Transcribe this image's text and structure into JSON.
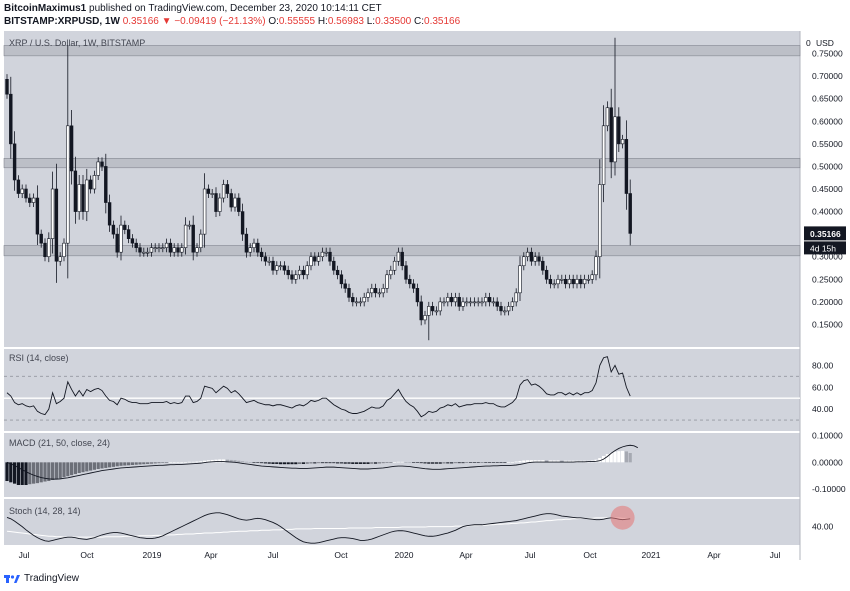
{
  "header": {
    "author": "BitcoinMaximus1",
    "published_text": "published on TradingView.com, December 23, 2020 10:14:11 CET",
    "symbol": "BITSTAMP:XRPUSD, 1W",
    "last_price": "0.35166",
    "change_arrow": "▼",
    "change": "−0.09419 (−21.13%)",
    "o_label": "O:",
    "o_value": "0.55555",
    "h_label": "H:",
    "h_value": "0.56983",
    "l_label": "L:",
    "l_value": "0.33500",
    "c_label": "C:",
    "c_value": "0.35166"
  },
  "footer": {
    "brand": "TradingView"
  },
  "colors": {
    "pane_bg": "#d1d4dc",
    "candle_up": "#ffffff",
    "candle_down": "#131722",
    "line": "#131722",
    "zone_fill": "#b9bcc4",
    "highlight_circle": "#e57373",
    "price_tag_bg": "#131722",
    "price_tag_text": "#ffffff"
  },
  "chart_data": {
    "type": "candlestick",
    "title": "XRP / U.S. Dollar, 1W, BITSTAMP",
    "currency": "USD",
    "y_ticks": [
      "0.15000",
      "0.20000",
      "0.25000",
      "0.30000",
      "0.35000",
      "0.40000",
      "0.45000",
      "0.50000",
      "0.55000",
      "0.60000",
      "0.65000",
      "0.70000",
      "0.75000"
    ],
    "y_top_tick": "0",
    "ylim": [
      0.1,
      0.8
    ],
    "x_ticks": [
      "Jul",
      "Oct",
      "2019",
      "Apr",
      "Jul",
      "Oct",
      "2020",
      "Apr",
      "Jul",
      "Oct",
      "2021",
      "Apr",
      "Jul"
    ],
    "current_price_label": "0.35166",
    "countdown_label": "4d 15h",
    "zones": [
      [
        0.745,
        0.768
      ],
      [
        0.497,
        0.518
      ],
      [
        0.302,
        0.325
      ]
    ],
    "closes": [
      0.66,
      0.55,
      0.47,
      0.44,
      0.45,
      0.43,
      0.42,
      0.43,
      0.35,
      0.33,
      0.3,
      0.34,
      0.45,
      0.29,
      0.3,
      0.33,
      0.59,
      0.49,
      0.4,
      0.46,
      0.4,
      0.47,
      0.45,
      0.48,
      0.51,
      0.5,
      0.42,
      0.37,
      0.35,
      0.31,
      0.37,
      0.36,
      0.34,
      0.33,
      0.32,
      0.31,
      0.31,
      0.31,
      0.32,
      0.32,
      0.32,
      0.32,
      0.33,
      0.31,
      0.32,
      0.31,
      0.32,
      0.37,
      0.37,
      0.31,
      0.32,
      0.35,
      0.45,
      0.44,
      0.44,
      0.4,
      0.43,
      0.46,
      0.44,
      0.41,
      0.43,
      0.4,
      0.35,
      0.31,
      0.32,
      0.33,
      0.31,
      0.3,
      0.29,
      0.29,
      0.27,
      0.28,
      0.28,
      0.27,
      0.26,
      0.25,
      0.26,
      0.27,
      0.26,
      0.28,
      0.3,
      0.29,
      0.3,
      0.31,
      0.31,
      0.29,
      0.27,
      0.26,
      0.24,
      0.23,
      0.21,
      0.2,
      0.2,
      0.2,
      0.21,
      0.22,
      0.23,
      0.22,
      0.22,
      0.23,
      0.26,
      0.27,
      0.29,
      0.31,
      0.28,
      0.25,
      0.24,
      0.23,
      0.2,
      0.16,
      0.17,
      0.19,
      0.18,
      0.18,
      0.2,
      0.2,
      0.21,
      0.2,
      0.21,
      0.19,
      0.2,
      0.2,
      0.2,
      0.2,
      0.2,
      0.2,
      0.21,
      0.2,
      0.2,
      0.19,
      0.18,
      0.18,
      0.19,
      0.2,
      0.22,
      0.28,
      0.3,
      0.31,
      0.29,
      0.3,
      0.29,
      0.27,
      0.25,
      0.24,
      0.24,
      0.25,
      0.25,
      0.24,
      0.25,
      0.24,
      0.25,
      0.24,
      0.25,
      0.25,
      0.26,
      0.3,
      0.46,
      0.59,
      0.63,
      0.51,
      0.61,
      0.55,
      0.56,
      0.44,
      0.35166
    ],
    "rsi": {
      "label": "RSI (14, close)",
      "ticks": [
        "40.00",
        "60.00",
        "80.00"
      ],
      "ylim": [
        20,
        95
      ],
      "levels": [
        30,
        70
      ],
      "values": [
        55,
        52,
        46,
        44,
        45,
        43,
        42,
        43,
        38,
        36,
        35,
        40,
        55,
        45,
        47,
        50,
        65,
        58,
        52,
        57,
        52,
        58,
        56,
        58,
        59,
        57,
        52,
        48,
        47,
        44,
        50,
        49,
        47,
        46,
        46,
        45,
        45,
        45,
        46,
        46,
        46,
        46,
        47,
        45,
        46,
        45,
        46,
        52,
        52,
        46,
        47,
        50,
        61,
        60,
        59,
        55,
        58,
        61,
        59,
        55,
        57,
        54,
        50,
        46,
        47,
        48,
        46,
        45,
        44,
        44,
        43,
        44,
        44,
        43,
        42,
        41,
        43,
        44,
        43,
        45,
        48,
        47,
        48,
        50,
        50,
        47,
        44,
        42,
        40,
        39,
        37,
        36,
        36,
        37,
        38,
        40,
        42,
        41,
        41,
        43,
        48,
        50,
        54,
        58,
        52,
        47,
        44,
        42,
        38,
        33,
        35,
        38,
        37,
        38,
        41,
        42,
        44,
        43,
        45,
        42,
        43,
        44,
        44,
        45,
        45,
        45,
        46,
        45,
        45,
        43,
        42,
        42,
        44,
        46,
        50,
        62,
        66,
        67,
        62,
        63,
        61,
        58,
        54,
        53,
        53,
        55,
        55,
        53,
        55,
        53,
        55,
        53,
        55,
        55,
        57,
        64,
        80,
        87,
        88,
        74,
        80,
        72,
        73,
        60,
        52
      ]
    },
    "macd": {
      "label": "MACD (21, 50, close, 24)",
      "ticks": [
        "0.10000",
        "0.00000",
        "-0.10000"
      ],
      "ylim": [
        -0.13,
        0.11
      ],
      "hist": [
        -0.07,
        -0.075,
        -0.08,
        -0.085,
        -0.085,
        -0.085,
        -0.082,
        -0.08,
        -0.078,
        -0.075,
        -0.072,
        -0.07,
        -0.066,
        -0.064,
        -0.06,
        -0.056,
        -0.052,
        -0.048,
        -0.044,
        -0.04,
        -0.037,
        -0.034,
        -0.031,
        -0.028,
        -0.025,
        -0.023,
        -0.021,
        -0.019,
        -0.017,
        -0.015,
        -0.013,
        -0.012,
        -0.011,
        -0.01,
        -0.009,
        -0.008,
        -0.007,
        -0.006,
        -0.005,
        -0.004,
        -0.003,
        -0.002,
        -0.001,
        0.0,
        0.001,
        0.001,
        0.001,
        0.001,
        0.002,
        0.002,
        0.003,
        0.004,
        0.006,
        0.008,
        0.009,
        0.01,
        0.011,
        0.011,
        0.01,
        0.009,
        0.008,
        0.006,
        0.004,
        0.002,
        0.0,
        -0.001,
        -0.002,
        -0.003,
        -0.004,
        -0.005,
        -0.006,
        -0.006,
        -0.007,
        -0.007,
        -0.007,
        -0.007,
        -0.007,
        -0.006,
        -0.006,
        -0.005,
        -0.004,
        -0.004,
        -0.003,
        -0.003,
        -0.003,
        -0.003,
        -0.003,
        -0.004,
        -0.004,
        -0.005,
        -0.005,
        -0.006,
        -0.006,
        -0.006,
        -0.006,
        -0.006,
        -0.005,
        -0.005,
        -0.004,
        -0.003,
        -0.002,
        -0.001,
        0.001,
        0.002,
        0.002,
        0.001,
        0.0,
        -0.001,
        -0.002,
        -0.003,
        -0.004,
        -0.005,
        -0.005,
        -0.005,
        -0.005,
        -0.004,
        -0.004,
        -0.004,
        -0.003,
        -0.003,
        -0.003,
        -0.002,
        -0.002,
        -0.002,
        -0.002,
        -0.001,
        -0.001,
        -0.001,
        -0.001,
        -0.001,
        -0.001,
        -0.001,
        0.0,
        0.001,
        0.003,
        0.005,
        0.007,
        0.008,
        0.008,
        0.008,
        0.008,
        0.008,
        0.007,
        0.007,
        0.007,
        0.007,
        0.006,
        0.006,
        0.006,
        0.006,
        0.006,
        0.006,
        0.006,
        0.006,
        0.007,
        0.01,
        0.016,
        0.024,
        0.031,
        0.036,
        0.04,
        0.042,
        0.043,
        0.041,
        0.035
      ],
      "line": [
        0.0,
        -0.005,
        -0.012,
        -0.02,
        -0.028,
        -0.035,
        -0.042,
        -0.048,
        -0.053,
        -0.057,
        -0.06,
        -0.062,
        -0.063,
        -0.063,
        -0.062,
        -0.06,
        -0.058,
        -0.055,
        -0.052,
        -0.049,
        -0.046,
        -0.043,
        -0.04,
        -0.037,
        -0.034,
        -0.031,
        -0.029,
        -0.027,
        -0.025,
        -0.023,
        -0.021,
        -0.02,
        -0.019,
        -0.018,
        -0.017,
        -0.016,
        -0.015,
        -0.014,
        -0.013,
        -0.012,
        -0.011,
        -0.011,
        -0.01,
        -0.009,
        -0.009,
        -0.008,
        -0.008,
        -0.007,
        -0.006,
        -0.005,
        -0.004,
        -0.003,
        -0.001,
        0.001,
        0.002,
        0.003,
        0.003,
        0.003,
        0.002,
        0.001,
        0.0,
        -0.002,
        -0.004,
        -0.006,
        -0.008,
        -0.01,
        -0.012,
        -0.014,
        -0.015,
        -0.016,
        -0.017,
        -0.018,
        -0.019,
        -0.02,
        -0.021,
        -0.022,
        -0.022,
        -0.023,
        -0.023,
        -0.023,
        -0.022,
        -0.021,
        -0.02,
        -0.019,
        -0.018,
        -0.018,
        -0.018,
        -0.019,
        -0.02,
        -0.021,
        -0.022,
        -0.023,
        -0.024,
        -0.025,
        -0.025,
        -0.025,
        -0.024,
        -0.023,
        -0.022,
        -0.021,
        -0.019,
        -0.017,
        -0.015,
        -0.014,
        -0.014,
        -0.015,
        -0.016,
        -0.018,
        -0.02,
        -0.022,
        -0.024,
        -0.025,
        -0.026,
        -0.026,
        -0.026,
        -0.025,
        -0.024,
        -0.023,
        -0.022,
        -0.021,
        -0.02,
        -0.019,
        -0.018,
        -0.017,
        -0.016,
        -0.015,
        -0.014,
        -0.014,
        -0.013,
        -0.013,
        -0.012,
        -0.012,
        -0.012,
        -0.011,
        -0.01,
        -0.008,
        -0.005,
        -0.002,
        0.0,
        0.001,
        0.001,
        0.001,
        0.001,
        0.001,
        0.001,
        0.001,
        0.001,
        0.001,
        0.001,
        0.001,
        0.002,
        0.002,
        0.002,
        0.003,
        0.003,
        0.004,
        0.006,
        0.012,
        0.022,
        0.034,
        0.044,
        0.052,
        0.058,
        0.062,
        0.064,
        0.062,
        0.055
      ]
    },
    "stoch": {
      "label": "Stoch (14, 28, 14)",
      "ticks": [
        "40.00"
      ],
      "ylim": [
        0,
        100
      ],
      "k": [
        60,
        57,
        52,
        46,
        40,
        33,
        27,
        21,
        16,
        12,
        9,
        8,
        10,
        12,
        14,
        16,
        17,
        17,
        16,
        14,
        13,
        12,
        14,
        16,
        19,
        22,
        24,
        26,
        27,
        27,
        26,
        24,
        22,
        20,
        18,
        16,
        15,
        14,
        14,
        15,
        17,
        20,
        24,
        28,
        32,
        36,
        40,
        44,
        48,
        52,
        56,
        60,
        64,
        67,
        69,
        70,
        70,
        68,
        66,
        63,
        60,
        57,
        55,
        54,
        55,
        57,
        58,
        57,
        55,
        52,
        49,
        45,
        40,
        34,
        28,
        22,
        16,
        11,
        7,
        5,
        4,
        4,
        5,
        7,
        9,
        11,
        13,
        15,
        16,
        16,
        15,
        14,
        12,
        10,
        10,
        11,
        13,
        16,
        19,
        22,
        25,
        28,
        30,
        31,
        31,
        30,
        28,
        26,
        24,
        22,
        20,
        19,
        19,
        20,
        22,
        24,
        26,
        29,
        32,
        36,
        40,
        42,
        43,
        44,
        44,
        44,
        45,
        46,
        47,
        48,
        49,
        50,
        51,
        52,
        53,
        55,
        57,
        59,
        61,
        63,
        65,
        67,
        68,
        68,
        67,
        65,
        63,
        62,
        61,
        60,
        59,
        59,
        58,
        57,
        56,
        55,
        55,
        56,
        58,
        59,
        58,
        56,
        55,
        56,
        57
      ],
      "d": [
        30,
        29,
        28,
        27,
        26,
        25,
        24,
        23,
        22,
        21,
        20,
        19,
        19,
        18,
        18,
        17,
        17,
        17,
        17,
        17,
        17,
        17,
        17,
        17,
        17,
        17,
        18,
        18,
        18,
        18,
        18,
        19,
        19,
        19,
        19,
        20,
        20,
        20,
        20,
        21,
        21,
        21,
        22,
        22,
        22,
        23,
        23,
        24,
        24,
        24,
        25,
        25,
        26,
        26,
        26,
        27,
        27,
        28,
        28,
        29,
        29,
        30,
        30,
        30,
        31,
        31,
        31,
        32,
        32,
        32,
        33,
        33,
        33,
        34,
        34,
        34,
        35,
        35,
        35,
        35,
        35,
        36,
        36,
        36,
        36,
        36,
        36,
        36,
        36,
        36,
        37,
        37,
        37,
        37,
        37,
        37,
        37,
        38,
        38,
        38,
        38,
        38,
        38,
        38,
        39,
        39,
        39,
        39,
        39,
        39,
        39,
        40,
        40,
        40,
        40,
        40,
        40,
        40,
        41,
        41,
        41,
        41,
        42,
        42,
        42,
        43,
        43,
        44,
        44,
        45,
        45,
        46,
        46,
        47,
        47,
        48,
        48,
        49,
        50,
        50,
        51,
        52,
        53,
        53,
        54,
        55,
        55,
        56,
        56,
        57,
        57,
        58,
        58,
        58,
        58,
        59,
        59,
        59,
        59,
        59,
        59,
        59,
        58,
        58,
        57
      ]
    }
  }
}
